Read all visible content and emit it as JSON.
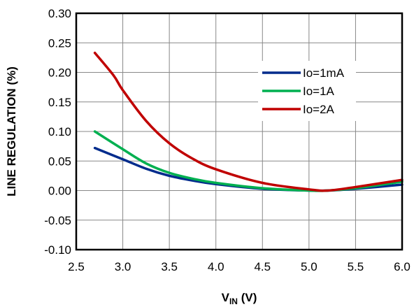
{
  "chart_data": {
    "type": "line",
    "xlabel": {
      "main": "V",
      "sub": "IN",
      "rest": " (V)"
    },
    "ylabel": "LINE  REGULATION  (%)",
    "xlim": [
      2.5,
      6.0
    ],
    "ylim": [
      -0.1,
      0.3
    ],
    "x_ticks": [
      "2.5",
      "3.0",
      "3.5",
      "4.0",
      "4.5",
      "5.0",
      "5.5",
      "6.0"
    ],
    "y_ticks": [
      "-0.10",
      "-0.05",
      "0.00",
      "0.05",
      "0.10",
      "0.15",
      "0.20",
      "0.25",
      "0.30"
    ],
    "grid": true,
    "legend_position": "upper-right",
    "series": [
      {
        "name": "Io=1mA",
        "color": "#002b8c",
        "x": [
          2.7,
          3.0,
          3.25,
          3.5,
          3.75,
          4.0,
          4.5,
          5.0,
          5.2,
          5.5,
          6.0
        ],
        "y": [
          0.072,
          0.053,
          0.037,
          0.025,
          0.017,
          0.011,
          0.003,
          0.0,
          0.0,
          0.003,
          0.01
        ]
      },
      {
        "name": "Io=1A",
        "color": "#00b050",
        "x": [
          2.7,
          3.0,
          3.25,
          3.5,
          3.75,
          4.0,
          4.5,
          5.0,
          5.2,
          5.5,
          6.0
        ],
        "y": [
          0.1,
          0.07,
          0.046,
          0.03,
          0.02,
          0.013,
          0.004,
          0.0,
          0.0,
          0.004,
          0.015
        ]
      },
      {
        "name": "Io=2A",
        "color": "#c00000",
        "x": [
          2.7,
          2.9,
          3.0,
          3.25,
          3.5,
          3.75,
          4.0,
          4.5,
          5.0,
          5.2,
          5.5,
          6.0
        ],
        "y": [
          0.233,
          0.195,
          0.17,
          0.118,
          0.08,
          0.054,
          0.036,
          0.013,
          0.002,
          0.0,
          0.006,
          0.018
        ]
      }
    ]
  }
}
